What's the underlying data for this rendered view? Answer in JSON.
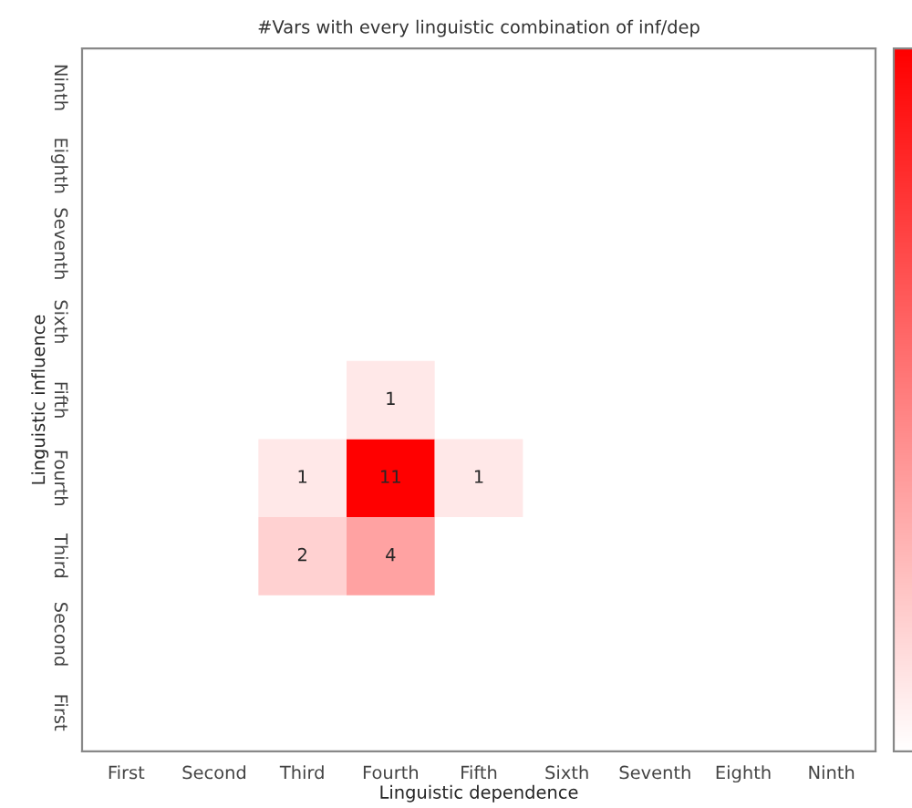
{
  "chart_data": {
    "type": "heatmap",
    "title": "#Vars with every linguistic combination of inf/dep",
    "xlabel": "Linguistic dependence",
    "ylabel": "Linguistic influence",
    "categories": [
      "First",
      "Second",
      "Third",
      "Fourth",
      "Fifth",
      "Sixth",
      "Seventh",
      "Eighth",
      "Ninth"
    ],
    "y_categories": [
      "Ninth",
      "Eighth",
      "Seventh",
      "Sixth",
      "Fifth",
      "Fourth",
      "Third",
      "Second",
      "First"
    ],
    "cells": [
      [
        null,
        null,
        null,
        null,
        null,
        null,
        null,
        null,
        null
      ],
      [
        null,
        null,
        null,
        null,
        null,
        null,
        null,
        null,
        null
      ],
      [
        null,
        null,
        null,
        null,
        null,
        null,
        null,
        null,
        null
      ],
      [
        null,
        null,
        null,
        null,
        null,
        null,
        null,
        null,
        null
      ],
      [
        null,
        null,
        null,
        1,
        null,
        null,
        null,
        null,
        null
      ],
      [
        null,
        null,
        1,
        11,
        1,
        null,
        null,
        null,
        null
      ],
      [
        null,
        null,
        2,
        4,
        null,
        null,
        null,
        null,
        null
      ],
      [
        null,
        null,
        null,
        null,
        null,
        null,
        null,
        null,
        null
      ],
      [
        null,
        null,
        null,
        null,
        null,
        null,
        null,
        null,
        null
      ]
    ],
    "data_labels": true,
    "grid": false
  }
}
